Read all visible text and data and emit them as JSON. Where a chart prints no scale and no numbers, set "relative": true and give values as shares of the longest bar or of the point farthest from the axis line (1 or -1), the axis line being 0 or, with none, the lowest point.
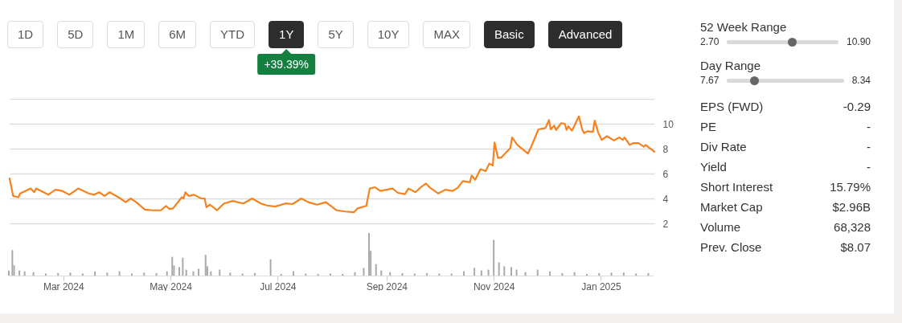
{
  "chart_data": [
    {
      "type": "line",
      "color": "#f5821f",
      "xlim": [
        "2024-01-30",
        "2025-01-31"
      ],
      "ylim": [
        2,
        12
      ],
      "yticks": [
        2,
        4,
        6,
        8,
        10,
        {
          "value": 12,
          "label": null
        }
      ],
      "grid": "y",
      "tick_labels": "y",
      "x": [
        "2024-01-30",
        "2024-02-01",
        "2024-02-04",
        "2024-02-05",
        "2024-02-11",
        "2024-02-13",
        "2024-02-14",
        "2024-02-21",
        "2024-02-25",
        "2024-02-29",
        "2024-03-04",
        "2024-03-09",
        "2024-03-15",
        "2024-03-18",
        "2024-03-21",
        "2024-03-24",
        "2024-03-27",
        "2024-04-02",
        "2024-04-05",
        "2024-04-08",
        "2024-04-11",
        "2024-04-16",
        "2024-04-20",
        "2024-04-25",
        "2024-04-28",
        "2024-04-30",
        "2024-05-02",
        "2024-05-07",
        "2024-05-08",
        "2024-05-09",
        "2024-05-11",
        "2024-05-14",
        "2024-05-18",
        "2024-05-20",
        "2024-05-21",
        "2024-05-23",
        "2024-05-27",
        "2024-05-31",
        "2024-06-05",
        "2024-06-11",
        "2024-06-16",
        "2024-06-21",
        "2024-06-24",
        "2024-06-29",
        "2024-07-05",
        "2024-07-09",
        "2024-07-14",
        "2024-07-18",
        "2024-07-23",
        "2024-07-28",
        "2024-08-03",
        "2024-08-08",
        "2024-08-13",
        "2024-08-15",
        "2024-08-20",
        "2024-08-22",
        "2024-08-25",
        "2024-08-28",
        "2024-09-04",
        "2024-09-07",
        "2024-09-11",
        "2024-09-13",
        "2024-09-17",
        "2024-09-20",
        "2024-09-23",
        "2024-09-25",
        "2024-09-30",
        "2024-10-04",
        "2024-10-08",
        "2024-10-11",
        "2024-10-14",
        "2024-10-18",
        "2024-10-19",
        "2024-10-21",
        "2024-10-24",
        "2024-10-27",
        "2024-10-29",
        "2024-10-31",
        "2024-11-01",
        "2024-11-03",
        "2024-11-05",
        "2024-11-10",
        "2024-11-11",
        "2024-11-14",
        "2024-11-20",
        "2024-11-22",
        "2024-11-26",
        "2024-11-30",
        "2024-12-02",
        "2024-12-03",
        "2024-12-05",
        "2024-12-06",
        "2024-12-09",
        "2024-12-11",
        "2024-12-12",
        "2024-12-13",
        "2024-12-15",
        "2024-12-16",
        "2024-12-19",
        "2024-12-21",
        "2024-12-22",
        "2024-12-24",
        "2024-12-27",
        "2024-12-28",
        "2024-12-30",
        "2025-01-01",
        "2025-01-04",
        "2025-01-08",
        "2025-01-11",
        "2025-01-13",
        "2025-01-14",
        "2025-01-17",
        "2025-01-19",
        "2025-01-22",
        "2025-01-25",
        "2025-01-26",
        "2025-01-31"
      ],
      "values": [
        5.6,
        4.2,
        4.1,
        4.4,
        4.8,
        4.5,
        4.8,
        4.3,
        4.7,
        4.6,
        4.3,
        4.8,
        4.4,
        4.3,
        4.5,
        4.2,
        4.5,
        4.0,
        3.7,
        4.0,
        3.7,
        3.1,
        3.05,
        3.05,
        3.4,
        3.15,
        3.2,
        4.1,
        4.0,
        4.5,
        4.2,
        4.3,
        4.0,
        4.0,
        3.3,
        3.5,
        3.05,
        3.6,
        3.8,
        3.6,
        4.0,
        3.6,
        3.45,
        3.35,
        3.6,
        3.55,
        4.0,
        3.7,
        3.5,
        3.7,
        3.05,
        2.95,
        2.9,
        3.2,
        3.4,
        4.8,
        4.9,
        4.6,
        4.8,
        4.45,
        4.35,
        4.8,
        4.5,
        4.9,
        5.2,
        4.9,
        4.4,
        4.7,
        4.6,
        4.85,
        5.4,
        5.3,
        5.85,
        5.5,
        6.35,
        6.2,
        6.8,
        6.65,
        8.5,
        7.25,
        7.3,
        8.05,
        8.9,
        8.3,
        7.6,
        8.2,
        9.55,
        9.65,
        10.3,
        9.55,
        9.85,
        9.5,
        10.05,
        10.0,
        9.5,
        9.8,
        9.45,
        9.7,
        10.6,
        9.5,
        9.25,
        9.4,
        9.35,
        10.25,
        9.3,
        8.7,
        9.0,
        8.65,
        8.9,
        8.7,
        8.9,
        8.3,
        8.45,
        8.45,
        8.15,
        8.3,
        7.75
      ]
    },
    {
      "type": "bar",
      "relative": true,
      "color": "#aaaaaa",
      "xlim": [
        "2024-01-30",
        "2025-01-31"
      ],
      "tick_labels": "x",
      "xticks": [
        {
          "value": "2024-03-01",
          "label": "Mar 2024"
        },
        {
          "value": "2024-05-01",
          "label": "May 2024"
        },
        {
          "value": "2024-07-01",
          "label": "Jul 2024"
        },
        {
          "value": "2024-09-01",
          "label": "Sep 2024"
        },
        {
          "value": "2024-11-01",
          "label": "Nov 2024"
        },
        {
          "value": "2025-01-01",
          "label": "Jan 2025"
        }
      ],
      "x": [
        "2024-01-30",
        "2024-02-01",
        "2024-02-02",
        "2024-02-05",
        "2024-02-08",
        "2024-02-13",
        "2024-02-20",
        "2024-02-27",
        "2024-03-05",
        "2024-03-12",
        "2024-03-19",
        "2024-03-26",
        "2024-04-02",
        "2024-04-09",
        "2024-04-16",
        "2024-04-23",
        "2024-04-29",
        "2024-05-02",
        "2024-05-03",
        "2024-05-06",
        "2024-05-08",
        "2024-05-10",
        "2024-05-14",
        "2024-05-17",
        "2024-05-21",
        "2024-05-22",
        "2024-05-24",
        "2024-05-29",
        "2024-06-04",
        "2024-06-11",
        "2024-06-18",
        "2024-06-27",
        "2024-07-03",
        "2024-07-10",
        "2024-07-17",
        "2024-07-24",
        "2024-07-31",
        "2024-08-07",
        "2024-08-14",
        "2024-08-19",
        "2024-08-22",
        "2024-08-23",
        "2024-08-26",
        "2024-08-29",
        "2024-09-03",
        "2024-09-10",
        "2024-09-17",
        "2024-09-24",
        "2024-10-01",
        "2024-10-08",
        "2024-10-15",
        "2024-10-21",
        "2024-10-25",
        "2024-10-29",
        "2024-11-01",
        "2024-11-04",
        "2024-11-07",
        "2024-11-11",
        "2024-11-14",
        "2024-11-19",
        "2024-11-26",
        "2024-12-03",
        "2024-12-10",
        "2024-12-17",
        "2024-12-24",
        "2024-12-31",
        "2025-01-07",
        "2025-01-14",
        "2025-01-21",
        "2025-01-28"
      ],
      "values": [
        0.12,
        0.6,
        0.24,
        0.12,
        0.1,
        0.08,
        0.05,
        0.06,
        0.07,
        0.05,
        0.1,
        0.07,
        0.1,
        0.05,
        0.07,
        0.06,
        0.1,
        0.44,
        0.24,
        0.2,
        0.42,
        0.14,
        0.1,
        0.16,
        0.49,
        0.22,
        0.1,
        0.14,
        0.07,
        0.05,
        0.06,
        0.38,
        0.04,
        0.1,
        0.05,
        0.04,
        0.05,
        0.04,
        0.08,
        0.18,
        1,
        0.58,
        0.27,
        0.12,
        0.08,
        0.06,
        0.05,
        0.06,
        0.05,
        0.05,
        0.1,
        0.18,
        0.12,
        0.14,
        0.84,
        0.31,
        0.22,
        0.2,
        0.14,
        0.08,
        0.14,
        0.1,
        0.06,
        0.08,
        0.04,
        0.06,
        0.07,
        0.07,
        0.05,
        0.06
      ]
    },
    {
      "type": "other",
      "annotations": [
        "1D",
        "5D",
        "1M",
        "6M",
        "YTD",
        "1Y",
        "5Y",
        "10Y",
        "MAX",
        "Basic",
        "Advanced",
        "+39.39%"
      ]
    },
    {
      "type": "other",
      "annotations": [
        "52 Week Range",
        "2.70",
        "10.90",
        "Day Range",
        "7.67",
        "8.34",
        "EPS (FWD)",
        "-0.29",
        "PE",
        "-",
        "Div Rate",
        "-",
        "Yield",
        "-",
        "Short Interest",
        "15.79%",
        "Market Cap",
        "$2.96B",
        "Volume",
        "68,328",
        "Prev. Close",
        "$8.07"
      ]
    }
  ]
}
